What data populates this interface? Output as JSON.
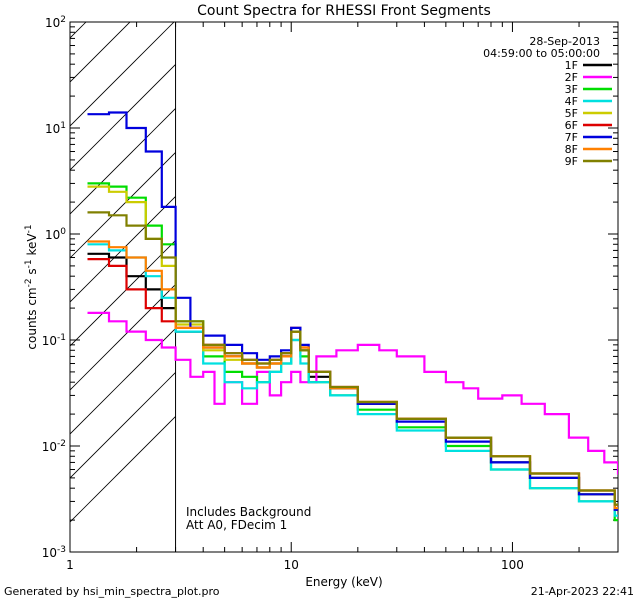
{
  "chart_data": {
    "type": "line",
    "title": "Count Spectra for RHESSI Front Segments",
    "xlabel": "Energy (keV)",
    "ylabel_parts": [
      "counts cm",
      "-2",
      " s",
      "-1",
      " keV",
      "-1"
    ],
    "xscale": "log",
    "yscale": "log",
    "xlim": [
      1,
      300
    ],
    "ylim": [
      0.001,
      100
    ],
    "x_tick_labels": [
      {
        "value": 1,
        "label": "1"
      },
      {
        "value": 10,
        "label": "10"
      },
      {
        "value": 100,
        "label": "100"
      }
    ],
    "y_tick_labels": [
      {
        "value": 100,
        "base": "10",
        "exp": "2"
      },
      {
        "value": 10,
        "base": "10",
        "exp": "1"
      },
      {
        "value": 1,
        "base": "10",
        "exp": "0"
      },
      {
        "value": 0.1,
        "base": "10",
        "exp": "-1"
      },
      {
        "value": 0.01,
        "base": "10",
        "exp": "-2"
      },
      {
        "value": 0.001,
        "base": "10",
        "exp": "-3"
      }
    ],
    "hatched_region_kev": [
      1,
      3
    ],
    "date_text": "28-Sep-2013",
    "time_range_text": "04:59:00 to 05:00:00",
    "annotations": [
      "Includes Background",
      "Att A0, FDecim 1"
    ],
    "legend_position": "top-right",
    "series": [
      {
        "name": "1F",
        "color": "#000000",
        "points": [
          [
            1.2,
            0.65
          ],
          [
            1.5,
            0.6
          ],
          [
            1.8,
            0.4
          ],
          [
            2.2,
            0.3
          ],
          [
            2.6,
            0.2
          ],
          [
            3.0,
            0.12
          ],
          [
            4,
            0.085
          ],
          [
            5,
            0.07
          ],
          [
            6,
            0.06
          ],
          [
            7,
            0.055
          ],
          [
            8,
            0.06
          ],
          [
            9,
            0.07
          ],
          [
            10,
            0.12
          ],
          [
            11,
            0.08
          ],
          [
            12,
            0.045
          ],
          [
            15,
            0.035
          ],
          [
            20,
            0.025
          ],
          [
            30,
            0.018
          ],
          [
            50,
            0.012
          ],
          [
            80,
            0.007
          ],
          [
            120,
            0.005
          ],
          [
            200,
            0.0035
          ],
          [
            290,
            0.0025
          ]
        ]
      },
      {
        "name": "2F",
        "color": "#ff00ff",
        "points": [
          [
            1.2,
            0.18
          ],
          [
            1.5,
            0.15
          ],
          [
            1.8,
            0.12
          ],
          [
            2.2,
            0.1
          ],
          [
            2.6,
            0.085
          ],
          [
            3.0,
            0.065
          ],
          [
            3.5,
            0.045
          ],
          [
            4,
            0.05
          ],
          [
            4.5,
            0.025
          ],
          [
            5,
            0.04
          ],
          [
            6,
            0.025
          ],
          [
            7,
            0.05
          ],
          [
            8,
            0.03
          ],
          [
            9,
            0.04
          ],
          [
            10,
            0.05
          ],
          [
            11,
            0.04
          ],
          [
            13,
            0.07
          ],
          [
            16,
            0.08
          ],
          [
            20,
            0.09
          ],
          [
            25,
            0.08
          ],
          [
            30,
            0.07
          ],
          [
            40,
            0.05
          ],
          [
            50,
            0.04
          ],
          [
            60,
            0.035
          ],
          [
            70,
            0.028
          ],
          [
            90,
            0.03
          ],
          [
            110,
            0.025
          ],
          [
            140,
            0.02
          ],
          [
            180,
            0.012
          ],
          [
            220,
            0.009
          ],
          [
            260,
            0.007
          ],
          [
            300,
            0.0055
          ]
        ]
      },
      {
        "name": "3F",
        "color": "#00dd00",
        "points": [
          [
            1.2,
            3.0
          ],
          [
            1.5,
            2.8
          ],
          [
            1.8,
            2.2
          ],
          [
            2.2,
            1.2
          ],
          [
            2.6,
            0.8
          ],
          [
            3.0,
            0.15
          ],
          [
            4,
            0.07
          ],
          [
            5,
            0.05
          ],
          [
            6,
            0.045
          ],
          [
            7,
            0.04
          ],
          [
            8,
            0.05
          ],
          [
            9,
            0.06
          ],
          [
            10,
            0.1
          ],
          [
            11,
            0.07
          ],
          [
            12,
            0.04
          ],
          [
            15,
            0.03
          ],
          [
            20,
            0.022
          ],
          [
            30,
            0.015
          ],
          [
            50,
            0.01
          ],
          [
            80,
            0.006
          ],
          [
            120,
            0.004
          ],
          [
            200,
            0.003
          ],
          [
            290,
            0.002
          ]
        ]
      },
      {
        "name": "4F",
        "color": "#00e0e0",
        "points": [
          [
            1.2,
            0.8
          ],
          [
            1.5,
            0.7
          ],
          [
            1.8,
            0.6
          ],
          [
            2.2,
            0.4
          ],
          [
            2.6,
            0.25
          ],
          [
            3.0,
            0.12
          ],
          [
            4,
            0.06
          ],
          [
            5,
            0.04
          ],
          [
            6,
            0.035
          ],
          [
            7,
            0.04
          ],
          [
            8,
            0.05
          ],
          [
            9,
            0.06
          ],
          [
            10,
            0.1
          ],
          [
            11,
            0.06
          ],
          [
            12,
            0.04
          ],
          [
            15,
            0.03
          ],
          [
            20,
            0.02
          ],
          [
            30,
            0.014
          ],
          [
            50,
            0.009
          ],
          [
            80,
            0.006
          ],
          [
            120,
            0.004
          ],
          [
            200,
            0.003
          ],
          [
            290,
            0.0022
          ]
        ]
      },
      {
        "name": "5F",
        "color": "#cccc00",
        "points": [
          [
            1.2,
            2.8
          ],
          [
            1.5,
            2.5
          ],
          [
            1.8,
            2.0
          ],
          [
            2.2,
            0.9
          ],
          [
            2.6,
            0.5
          ],
          [
            3.0,
            0.14
          ],
          [
            4,
            0.08
          ],
          [
            5,
            0.065
          ],
          [
            6,
            0.06
          ],
          [
            7,
            0.055
          ],
          [
            8,
            0.06
          ],
          [
            9,
            0.075
          ],
          [
            10,
            0.12
          ],
          [
            11,
            0.08
          ],
          [
            12,
            0.05
          ],
          [
            15,
            0.035
          ],
          [
            20,
            0.026
          ],
          [
            30,
            0.018
          ],
          [
            50,
            0.012
          ],
          [
            80,
            0.008
          ],
          [
            120,
            0.005
          ],
          [
            200,
            0.0035
          ],
          [
            290,
            0.0028
          ]
        ]
      },
      {
        "name": "6F",
        "color": "#dd0000",
        "points": [
          [
            1.2,
            0.58
          ],
          [
            1.5,
            0.5
          ],
          [
            1.8,
            0.3
          ],
          [
            2.2,
            0.2
          ],
          [
            2.6,
            0.15
          ],
          [
            3.0,
            0.13
          ],
          [
            4,
            0.09
          ],
          [
            5,
            0.075
          ],
          [
            6,
            0.065
          ],
          [
            7,
            0.06
          ],
          [
            8,
            0.065
          ],
          [
            9,
            0.075
          ],
          [
            10,
            0.13
          ],
          [
            11,
            0.085
          ],
          [
            12,
            0.05
          ],
          [
            15,
            0.036
          ],
          [
            20,
            0.026
          ],
          [
            30,
            0.018
          ],
          [
            50,
            0.012
          ],
          [
            80,
            0.008
          ],
          [
            120,
            0.0055
          ],
          [
            200,
            0.0038
          ],
          [
            290,
            0.0028
          ]
        ]
      },
      {
        "name": "7F",
        "color": "#0000dd",
        "points": [
          [
            1.2,
            13.5
          ],
          [
            1.5,
            14.0
          ],
          [
            1.8,
            10.0
          ],
          [
            2.2,
            6.0
          ],
          [
            2.6,
            1.8
          ],
          [
            3.0,
            0.25
          ],
          [
            3.5,
            0.13
          ],
          [
            4,
            0.11
          ],
          [
            5,
            0.09
          ],
          [
            6,
            0.075
          ],
          [
            7,
            0.065
          ],
          [
            8,
            0.07
          ],
          [
            9,
            0.08
          ],
          [
            10,
            0.13
          ],
          [
            11,
            0.09
          ],
          [
            12,
            0.05
          ],
          [
            15,
            0.035
          ],
          [
            20,
            0.025
          ],
          [
            30,
            0.017
          ],
          [
            50,
            0.011
          ],
          [
            80,
            0.007
          ],
          [
            120,
            0.005
          ],
          [
            200,
            0.0035
          ],
          [
            290,
            0.0025
          ]
        ]
      },
      {
        "name": "8F",
        "color": "#ff8000",
        "points": [
          [
            1.2,
            0.85
          ],
          [
            1.5,
            0.75
          ],
          [
            1.8,
            0.6
          ],
          [
            2.2,
            0.45
          ],
          [
            2.6,
            0.3
          ],
          [
            3.0,
            0.13
          ],
          [
            4,
            0.085
          ],
          [
            5,
            0.07
          ],
          [
            6,
            0.06
          ],
          [
            7,
            0.055
          ],
          [
            8,
            0.06
          ],
          [
            9,
            0.07
          ],
          [
            10,
            0.12
          ],
          [
            11,
            0.085
          ],
          [
            12,
            0.05
          ],
          [
            15,
            0.035
          ],
          [
            20,
            0.026
          ],
          [
            30,
            0.018
          ],
          [
            50,
            0.012
          ],
          [
            80,
            0.008
          ],
          [
            120,
            0.0055
          ],
          [
            200,
            0.0038
          ],
          [
            290,
            0.0026
          ]
        ]
      },
      {
        "name": "9F",
        "color": "#808000",
        "points": [
          [
            1.2,
            1.6
          ],
          [
            1.5,
            1.5
          ],
          [
            1.8,
            1.2
          ],
          [
            2.2,
            0.9
          ],
          [
            2.6,
            0.6
          ],
          [
            3.0,
            0.15
          ],
          [
            4,
            0.09
          ],
          [
            5,
            0.075
          ],
          [
            6,
            0.065
          ],
          [
            7,
            0.06
          ],
          [
            8,
            0.065
          ],
          [
            9,
            0.075
          ],
          [
            10,
            0.12
          ],
          [
            11,
            0.08
          ],
          [
            12,
            0.05
          ],
          [
            15,
            0.036
          ],
          [
            20,
            0.026
          ],
          [
            30,
            0.018
          ],
          [
            50,
            0.012
          ],
          [
            80,
            0.008
          ],
          [
            120,
            0.0055
          ],
          [
            200,
            0.0038
          ],
          [
            290,
            0.0028
          ]
        ]
      }
    ]
  },
  "footer": {
    "left": "Generated by hsi_min_spectra_plot.pro",
    "right": "21-Apr-2023 22:41"
  }
}
